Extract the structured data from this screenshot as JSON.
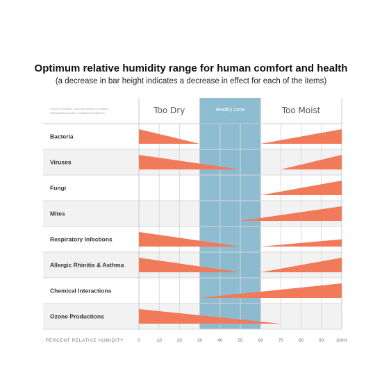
{
  "title": "Optimum relative humidity range for human comfort and health",
  "subtitle": "(a decrease in bar height indicates a decrease in effect for each of the items)",
  "source_text": [
    "Source: ASHRAE, American Society of Heating,",
    "Refrigeration and Air Conditioning Engineers"
  ],
  "colors": {
    "bar": "#f07a5a",
    "healthy_zone": "#7ab0c8",
    "grid": "#d8d8d8",
    "row_alt": "#f2f2f2"
  },
  "chart_data": {
    "type": "bar",
    "title": "Optimum relative humidity range for human comfort and health",
    "subtitle": "(a decrease in bar height indicates a decrease in effect for each of the items)",
    "xlabel": "PERCENT RELATIVE HUMIDITY",
    "xlim": [
      0,
      100
    ],
    "x_ticks": [
      "0",
      "10",
      "20",
      "30",
      "40",
      "50",
      "60",
      "70",
      "80",
      "90",
      "100%"
    ],
    "zones": [
      {
        "label": "Too Dry",
        "from": 0,
        "to": 30
      },
      {
        "label": "Healthy Zone",
        "from": 30,
        "to": 60
      },
      {
        "label": "Too Moist",
        "from": 60,
        "to": 100
      }
    ],
    "grid": true,
    "categories": [
      "Bacteria",
      "Viruses",
      "Fungi",
      "Mites",
      "Respiratory Infections",
      "Allergic Rhinitis & Asthma",
      "Chemical Interactions",
      "Ozone Productions"
    ],
    "effects": [
      {
        "name": "Bacteria",
        "segments": [
          {
            "from": 0,
            "to": 30,
            "start": 1,
            "end": 0
          },
          {
            "from": 60,
            "to": 100,
            "start": 0,
            "end": 1
          }
        ]
      },
      {
        "name": "Viruses",
        "segments": [
          {
            "from": 0,
            "to": 50,
            "start": 1,
            "end": 0
          },
          {
            "from": 70,
            "to": 100,
            "start": 0,
            "end": 1
          }
        ]
      },
      {
        "name": "Fungi",
        "segments": [
          {
            "from": 60,
            "to": 100,
            "start": 0,
            "end": 1
          }
        ]
      },
      {
        "name": "Mites",
        "segments": [
          {
            "from": 50,
            "to": 100,
            "start": 0,
            "end": 1
          }
        ]
      },
      {
        "name": "Respiratory Infections",
        "segments": [
          {
            "from": 0,
            "to": 50,
            "start": 1,
            "end": 0
          },
          {
            "from": 60,
            "to": 100,
            "start": 0,
            "end": 0.5
          }
        ]
      },
      {
        "name": "Allergic Rhinitis & Asthma",
        "segments": [
          {
            "from": 0,
            "to": 50,
            "start": 1,
            "end": 0
          },
          {
            "from": 60,
            "to": 100,
            "start": 0,
            "end": 1
          }
        ]
      },
      {
        "name": "Chemical Interactions",
        "segments": [
          {
            "from": 30,
            "to": 100,
            "start": 0,
            "end": 1
          }
        ]
      },
      {
        "name": "Ozone Productions",
        "segments": [
          {
            "from": 0,
            "to": 70,
            "start": 1,
            "end": 0
          }
        ]
      }
    ]
  }
}
